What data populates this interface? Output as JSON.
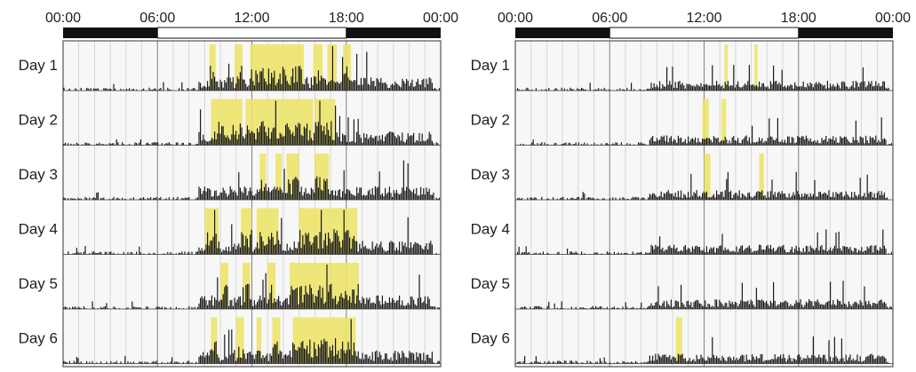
{
  "chart_data": [
    {
      "type": "actogram",
      "panel": "left",
      "x_ticks": [
        "00:00",
        "06:00",
        "12:00",
        "18:00",
        "00:00"
      ],
      "xlim_hours": [
        0,
        24
      ],
      "light_dark_bar": {
        "light_on_hour": 6,
        "light_off_hour": 18
      },
      "hourly_gridlines": true,
      "days": [
        {
          "label": "Day 1",
          "highlight_hours": [
            [
              9.3,
              9.7
            ],
            [
              10.9,
              11.4
            ],
            [
              11.9,
              15.3
            ],
            [
              15.9,
              16.5
            ],
            [
              16.8,
              17.4
            ],
            [
              17.8,
              18.3
            ]
          ]
        },
        {
          "label": "Day 2",
          "highlight_hours": [
            [
              9.4,
              11.4
            ],
            [
              11.6,
              15.9
            ],
            [
              16.0,
              17.3
            ]
          ]
        },
        {
          "label": "Day 3",
          "highlight_hours": [
            [
              12.5,
              12.9
            ],
            [
              13.5,
              13.9
            ],
            [
              14.2,
              15.0
            ],
            [
              16.0,
              16.9
            ]
          ]
        },
        {
          "label": "Day 4",
          "highlight_hours": [
            [
              9.0,
              9.9
            ],
            [
              11.3,
              12.0
            ],
            [
              12.3,
              13.7
            ],
            [
              15.0,
              18.7
            ]
          ]
        },
        {
          "label": "Day 5",
          "highlight_hours": [
            [
              10.0,
              10.5
            ],
            [
              11.4,
              11.9
            ],
            [
              13.0,
              13.5
            ],
            [
              14.4,
              18.8
            ]
          ]
        },
        {
          "label": "Day 6",
          "highlight_hours": [
            [
              9.4,
              9.8
            ],
            [
              11.0,
              11.5
            ],
            [
              12.3,
              12.6
            ],
            [
              13.3,
              13.8
            ],
            [
              14.6,
              18.6
            ]
          ]
        }
      ]
    },
    {
      "type": "actogram",
      "panel": "right",
      "x_ticks": [
        "00:00",
        "06:00",
        "12:00",
        "18:00",
        "00:00"
      ],
      "xlim_hours": [
        0,
        24
      ],
      "light_dark_bar": {
        "light_on_hour": 6,
        "light_off_hour": 18
      },
      "hourly_gridlines": true,
      "days": [
        {
          "label": "Day 1",
          "highlight_hours": [
            [
              13.3,
              13.5
            ],
            [
              15.2,
              15.4
            ]
          ]
        },
        {
          "label": "Day 2",
          "highlight_hours": [
            [
              11.9,
              12.3
            ],
            [
              13.1,
              13.4
            ]
          ]
        },
        {
          "label": "Day 3",
          "highlight_hours": [
            [
              12.0,
              12.4
            ],
            [
              15.5,
              15.8
            ]
          ]
        },
        {
          "label": "Day 4",
          "highlight_hours": []
        },
        {
          "label": "Day 5",
          "highlight_hours": []
        },
        {
          "label": "Day 6",
          "highlight_hours": [
            [
              10.2,
              10.6
            ]
          ]
        }
      ]
    }
  ]
}
